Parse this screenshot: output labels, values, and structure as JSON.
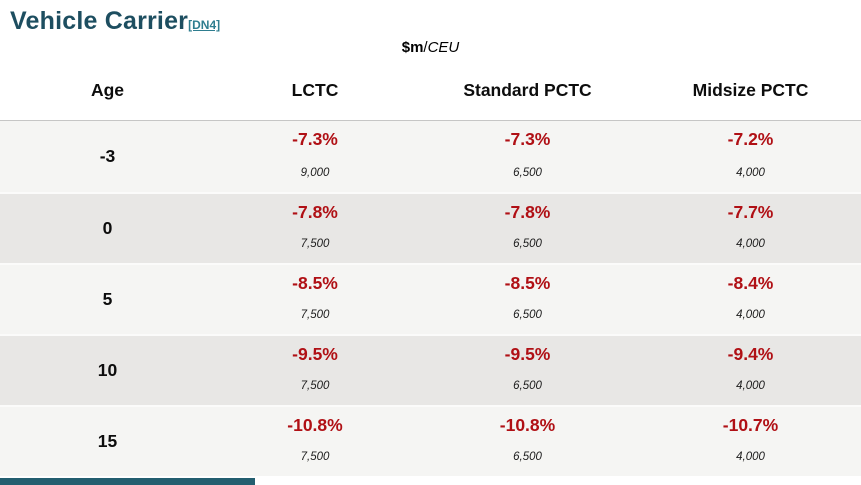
{
  "page": {
    "title": "Vehicle Carrier",
    "title_note": "[DN4]",
    "unit_label": {
      "prefix": "$m",
      "separator": "/",
      "suffix": "CEU"
    }
  },
  "table": {
    "headers": [
      "Age",
      "LCTC",
      "Standard PCTC",
      "Midsize PCTC"
    ],
    "rows": [
      {
        "age": "-3",
        "cells": [
          {
            "pct": "-7.3%",
            "ceu": "9,000"
          },
          {
            "pct": "-7.3%",
            "ceu": "6,500"
          },
          {
            "pct": "-7.2%",
            "ceu": "4,000"
          }
        ]
      },
      {
        "age": "0",
        "cells": [
          {
            "pct": "-7.8%",
            "ceu": "7,500"
          },
          {
            "pct": "-7.8%",
            "ceu": "6,500"
          },
          {
            "pct": "-7.7%",
            "ceu": "4,000"
          }
        ]
      },
      {
        "age": "5",
        "cells": [
          {
            "pct": "-8.5%",
            "ceu": "7,500"
          },
          {
            "pct": "-8.5%",
            "ceu": "6,500"
          },
          {
            "pct": "-8.4%",
            "ceu": "4,000"
          }
        ]
      },
      {
        "age": "10",
        "cells": [
          {
            "pct": "-9.5%",
            "ceu": "7,500"
          },
          {
            "pct": "-9.5%",
            "ceu": "6,500"
          },
          {
            "pct": "-9.4%",
            "ceu": "4,000"
          }
        ]
      },
      {
        "age": "15",
        "cells": [
          {
            "pct": "-10.8%",
            "ceu": "7,500"
          },
          {
            "pct": "-10.8%",
            "ceu": "6,500"
          },
          {
            "pct": "-10.7%",
            "ceu": "4,000"
          }
        ]
      }
    ]
  },
  "colors": {
    "title": "#1d4e60",
    "link": "#2e7d8f",
    "negative_value": "#b01015",
    "row_light": "#f5f5f3",
    "row_dark": "#e8e7e5",
    "bottom_bar": "#235e6f"
  }
}
